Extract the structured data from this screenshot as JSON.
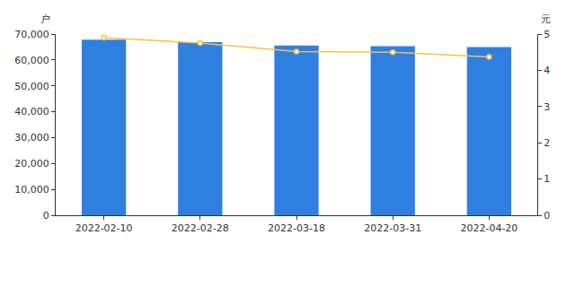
{
  "chart_data": {
    "type": "bar",
    "categories": [
      "2022-02-10",
      "2022-02-28",
      "2022-03-18",
      "2022-03-31",
      "2022-04-20"
    ],
    "y_label": "户",
    "y2_label": "元",
    "series": [
      {
        "type": "bar",
        "color": "#2f7fe0",
        "values": [
          67800,
          66900,
          65600,
          65300,
          65000
        ]
      },
      {
        "type": "line",
        "axis": "y2",
        "color": "#f5c242",
        "marker": "circle",
        "line_style": "solid",
        "values": [
          4.9,
          4.75,
          4.52,
          4.5,
          4.37
        ]
      }
    ],
    "ylim": [
      0,
      70000
    ],
    "yticks": [
      0,
      {
        "value": 10000,
        "label": "10,000"
      },
      {
        "value": 20000,
        "label": "20,000"
      },
      {
        "value": 30000,
        "label": "30,000"
      },
      {
        "value": 40000,
        "label": "40,000"
      },
      {
        "value": 50000,
        "label": "50,000"
      },
      {
        "value": 60000,
        "label": "60,000"
      },
      {
        "value": 70000,
        "label": "70,000"
      }
    ],
    "y2lim": [
      0,
      5
    ],
    "y2ticks": [
      0,
      1,
      2,
      3,
      4,
      5
    ],
    "grid": false
  }
}
